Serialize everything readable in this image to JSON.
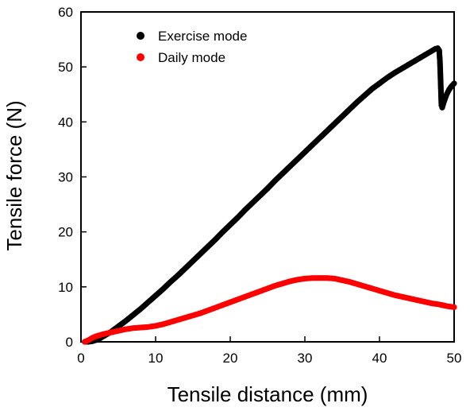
{
  "chart_data": {
    "type": "scatter",
    "xlabel": "Tensile distance (mm)",
    "ylabel": "Tensile force (N)",
    "xlim": [
      0,
      50
    ],
    "ylim": [
      0,
      60
    ],
    "xticks": [
      "0",
      "10",
      "20",
      "30",
      "40",
      "50"
    ],
    "yticks": [
      "0",
      "10",
      "20",
      "30",
      "40",
      "50",
      "60"
    ],
    "grid": false,
    "legend_position": "top-left",
    "series": [
      {
        "name": "Exercise mode",
        "color": "#000000",
        "points": [
          [
            0.5,
            0.0
          ],
          [
            1.0,
            0.0
          ],
          [
            1.5,
            0.1
          ],
          [
            2.0,
            0.3
          ],
          [
            2.5,
            0.6
          ],
          [
            3.0,
            1.0
          ],
          [
            3.5,
            1.4
          ],
          [
            4.0,
            1.8
          ],
          [
            4.5,
            2.3
          ],
          [
            5.0,
            2.8
          ],
          [
            6.0,
            3.8
          ],
          [
            7.0,
            4.9
          ],
          [
            8.0,
            6.0
          ],
          [
            9.0,
            7.2
          ],
          [
            10.0,
            8.4
          ],
          [
            11.0,
            9.6
          ],
          [
            12.0,
            10.9
          ],
          [
            13.0,
            12.1
          ],
          [
            14.0,
            13.4
          ],
          [
            15.0,
            14.7
          ],
          [
            16.0,
            16.0
          ],
          [
            17.0,
            17.3
          ],
          [
            18.0,
            18.6
          ],
          [
            19.0,
            20.0
          ],
          [
            20.0,
            21.3
          ],
          [
            21.0,
            22.6
          ],
          [
            22.0,
            24.0
          ],
          [
            23.0,
            25.3
          ],
          [
            24.0,
            26.6
          ],
          [
            25.0,
            27.9
          ],
          [
            26.0,
            29.3
          ],
          [
            27.0,
            30.6
          ],
          [
            28.0,
            31.9
          ],
          [
            29.0,
            33.2
          ],
          [
            30.0,
            34.5
          ],
          [
            31.0,
            35.8
          ],
          [
            32.0,
            37.1
          ],
          [
            33.0,
            38.4
          ],
          [
            34.0,
            39.7
          ],
          [
            35.0,
            41.0
          ],
          [
            36.0,
            42.3
          ],
          [
            37.0,
            43.6
          ],
          [
            38.0,
            44.8
          ],
          [
            39.0,
            46.0
          ],
          [
            40.0,
            47.0
          ],
          [
            41.0,
            48.0
          ],
          [
            42.0,
            48.9
          ],
          [
            43.0,
            49.7
          ],
          [
            44.0,
            50.5
          ],
          [
            45.0,
            51.3
          ],
          [
            46.0,
            52.1
          ],
          [
            47.0,
            52.9
          ],
          [
            47.5,
            53.3
          ],
          [
            47.8,
            53.4
          ],
          [
            48.0,
            53.0
          ],
          [
            48.1,
            51.0
          ],
          [
            48.15,
            49.0
          ],
          [
            48.2,
            47.0
          ],
          [
            48.25,
            45.0
          ],
          [
            48.3,
            43.0
          ],
          [
            48.4,
            42.6
          ],
          [
            48.6,
            43.5
          ],
          [
            48.8,
            44.3
          ],
          [
            49.0,
            45.0
          ],
          [
            49.3,
            45.8
          ],
          [
            49.6,
            46.4
          ],
          [
            50.0,
            47.0
          ]
        ]
      },
      {
        "name": "Daily mode",
        "color": "#ff0000",
        "points": [
          [
            0.5,
            0.0
          ],
          [
            1.0,
            0.3
          ],
          [
            1.5,
            0.7
          ],
          [
            2.0,
            1.0
          ],
          [
            3.0,
            1.4
          ],
          [
            4.0,
            1.7
          ],
          [
            5.0,
            2.0
          ],
          [
            6.0,
            2.3
          ],
          [
            7.0,
            2.5
          ],
          [
            8.0,
            2.6
          ],
          [
            9.0,
            2.7
          ],
          [
            10.0,
            2.9
          ],
          [
            11.0,
            3.2
          ],
          [
            12.0,
            3.6
          ],
          [
            13.0,
            4.0
          ],
          [
            14.0,
            4.4
          ],
          [
            15.0,
            4.8
          ],
          [
            16.0,
            5.2
          ],
          [
            17.0,
            5.7
          ],
          [
            18.0,
            6.2
          ],
          [
            19.0,
            6.7
          ],
          [
            20.0,
            7.2
          ],
          [
            21.0,
            7.7
          ],
          [
            22.0,
            8.2
          ],
          [
            23.0,
            8.7
          ],
          [
            24.0,
            9.2
          ],
          [
            25.0,
            9.7
          ],
          [
            26.0,
            10.2
          ],
          [
            27.0,
            10.6
          ],
          [
            28.0,
            11.0
          ],
          [
            29.0,
            11.3
          ],
          [
            30.0,
            11.5
          ],
          [
            31.0,
            11.6
          ],
          [
            32.0,
            11.6
          ],
          [
            33.0,
            11.6
          ],
          [
            34.0,
            11.5
          ],
          [
            35.0,
            11.2
          ],
          [
            36.0,
            10.9
          ],
          [
            37.0,
            10.5
          ],
          [
            38.0,
            10.1
          ],
          [
            39.0,
            9.7
          ],
          [
            40.0,
            9.3
          ],
          [
            41.0,
            8.9
          ],
          [
            42.0,
            8.5
          ],
          [
            43.0,
            8.2
          ],
          [
            44.0,
            7.9
          ],
          [
            45.0,
            7.6
          ],
          [
            46.0,
            7.3
          ],
          [
            47.0,
            7.0
          ],
          [
            48.0,
            6.8
          ],
          [
            49.0,
            6.5
          ],
          [
            50.0,
            6.3
          ]
        ]
      }
    ]
  }
}
